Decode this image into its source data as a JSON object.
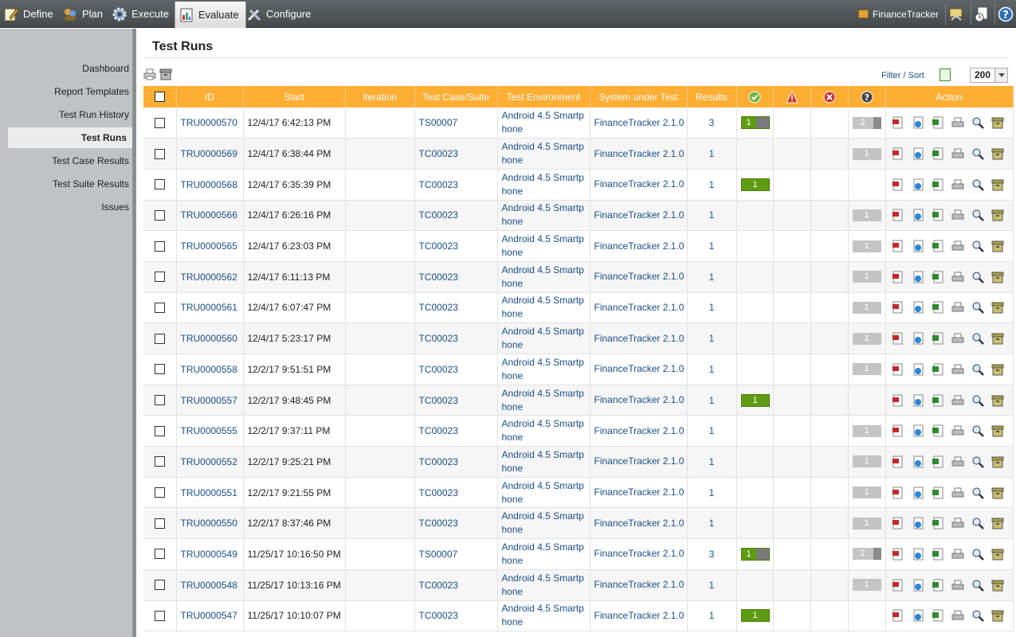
{
  "nav": {
    "items": [
      {
        "label": "Define",
        "icon": "pencil-icon"
      },
      {
        "label": "Plan",
        "icon": "people-icon"
      },
      {
        "label": "Execute",
        "icon": "gear-icon"
      },
      {
        "label": "Evaluate",
        "icon": "report-icon",
        "active": true
      },
      {
        "label": "Configure",
        "icon": "tools-icon"
      }
    ],
    "project": "FinanceTracker"
  },
  "sidebar": {
    "items": [
      "Dashboard",
      "Report Templates",
      "Test Run History",
      "Test Runs",
      "Test Case Results",
      "Test Suite Results",
      "Issues"
    ],
    "active": "Test Runs"
  },
  "page": {
    "title": "Test Runs",
    "filter_label": "Filter / Sort",
    "page_size": "200"
  },
  "table": {
    "headers": {
      "id": "ID",
      "start": "Start",
      "iteration": "Iteration",
      "case": "Test Case/Suite",
      "env": "Test Environment",
      "sut": "System under Test",
      "results": "Results",
      "action": "Action"
    },
    "rows": [
      {
        "id": "TRU0000570",
        "start": "12/4/17 6:42:13 PM",
        "case": "TS00007",
        "env": "Android 4.5 Smartphone",
        "sut": "FinanceTracker 2.1.0",
        "results": "3",
        "pass": "1",
        "unknown": "2"
      },
      {
        "id": "TRU0000569",
        "start": "12/4/17 6:38:44 PM",
        "case": "TC00023",
        "env": "Android 4.5 Smartphone",
        "sut": "FinanceTracker 2.1.0",
        "results": "1",
        "pass": "",
        "unknown": "1"
      },
      {
        "id": "TRU0000568",
        "start": "12/4/17 6:35:39 PM",
        "case": "TC00023",
        "env": "Android 4.5 Smartphone",
        "sut": "FinanceTracker 2.1.0",
        "results": "1",
        "pass": "1",
        "unknown": ""
      },
      {
        "id": "TRU0000566",
        "start": "12/4/17 6:26:16 PM",
        "case": "TC00023",
        "env": "Android 4.5 Smartphone",
        "sut": "FinanceTracker 2.1.0",
        "results": "1",
        "pass": "",
        "unknown": "1"
      },
      {
        "id": "TRU0000565",
        "start": "12/4/17 6:23:03 PM",
        "case": "TC00023",
        "env": "Android 4.5 Smartphone",
        "sut": "FinanceTracker 2.1.0",
        "results": "1",
        "pass": "",
        "unknown": "1"
      },
      {
        "id": "TRU0000562",
        "start": "12/4/17 6:11:13 PM",
        "case": "TC00023",
        "env": "Android 4.5 Smartphone",
        "sut": "FinanceTracker 2.1.0",
        "results": "1",
        "pass": "",
        "unknown": "1"
      },
      {
        "id": "TRU0000561",
        "start": "12/4/17 6:07:47 PM",
        "case": "TC00023",
        "env": "Android 4.5 Smartphone",
        "sut": "FinanceTracker 2.1.0",
        "results": "1",
        "pass": "",
        "unknown": "1"
      },
      {
        "id": "TRU0000560",
        "start": "12/4/17 5:23:17 PM",
        "case": "TC00023",
        "env": "Android 4.5 Smartphone",
        "sut": "FinanceTracker 2.1.0",
        "results": "1",
        "pass": "",
        "unknown": "1"
      },
      {
        "id": "TRU0000558",
        "start": "12/2/17 9:51:51 PM",
        "case": "TC00023",
        "env": "Android 4.5 Smartphone",
        "sut": "FinanceTracker 2.1.0",
        "results": "1",
        "pass": "",
        "unknown": "1"
      },
      {
        "id": "TRU0000557",
        "start": "12/2/17 9:48:45 PM",
        "case": "TC00023",
        "env": "Android 4.5 Smartphone",
        "sut": "FinanceTracker 2.1.0",
        "results": "1",
        "pass": "1",
        "unknown": ""
      },
      {
        "id": "TRU0000555",
        "start": "12/2/17 9:37:11 PM",
        "case": "TC00023",
        "env": "Android 4.5 Smartphone",
        "sut": "FinanceTracker 2.1.0",
        "results": "1",
        "pass": "",
        "unknown": "1"
      },
      {
        "id": "TRU0000552",
        "start": "12/2/17 9:25:21 PM",
        "case": "TC00023",
        "env": "Android 4.5 Smartphone",
        "sut": "FinanceTracker 2.1.0",
        "results": "1",
        "pass": "",
        "unknown": "1"
      },
      {
        "id": "TRU0000551",
        "start": "12/2/17 9:21:55 PM",
        "case": "TC00023",
        "env": "Android 4.5 Smartphone",
        "sut": "FinanceTracker 2.1.0",
        "results": "1",
        "pass": "",
        "unknown": "1"
      },
      {
        "id": "TRU0000550",
        "start": "12/2/17 8:37:46 PM",
        "case": "TC00023",
        "env": "Android 4.5 Smartphone",
        "sut": "FinanceTracker 2.1.0",
        "results": "1",
        "pass": "",
        "unknown": "1"
      },
      {
        "id": "TRU0000549",
        "start": "11/25/17 10:16:50 PM",
        "case": "TS00007",
        "env": "Android 4.5 Smartphone",
        "sut": "FinanceTracker 2.1.0",
        "results": "3",
        "pass": "1",
        "unknown": "2"
      },
      {
        "id": "TRU0000548",
        "start": "11/25/17 10:13:16 PM",
        "case": "TC00023",
        "env": "Android 4.5 Smartphone",
        "sut": "FinanceTracker 2.1.0",
        "results": "1",
        "pass": "",
        "unknown": "1"
      },
      {
        "id": "TRU0000547",
        "start": "11/25/17 10:10:07 PM",
        "case": "TC00023",
        "env": "Android 4.5 Smartphone",
        "sut": "FinanceTracker 2.1.0",
        "results": "1",
        "pass": "1",
        "unknown": ""
      }
    ]
  },
  "colors": {
    "header": "#ffae34",
    "pass": "#5f9b13",
    "unknown": "#c4c4c4",
    "link": "#1a4e8a"
  }
}
